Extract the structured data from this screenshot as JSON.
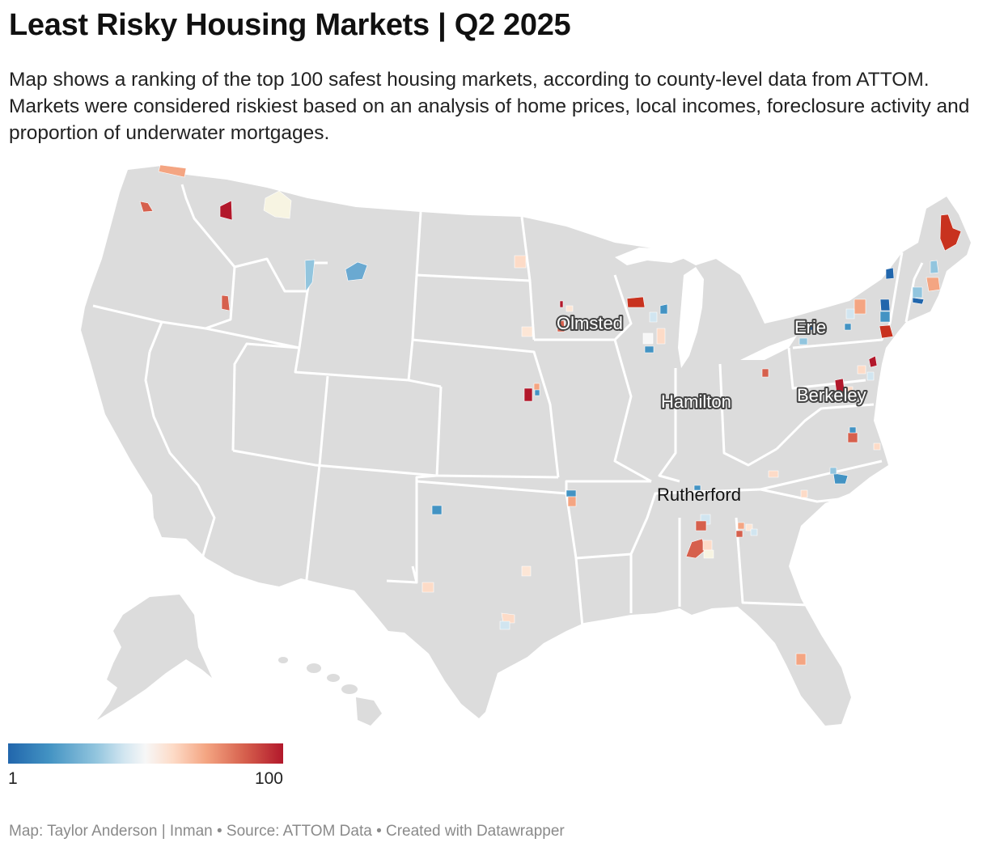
{
  "header": {
    "title": "Least Risky Housing Markets | Q2 2025",
    "subtitle": "Map shows a ranking of the top 100 safest housing markets, according to county-level data from ATTOM. Markets were considered riskiest based on an analysis of home prices, local incomes, foreclosure activity and proportion of underwater mortgages."
  },
  "map": {
    "land_color": "#dcdcdc",
    "border_color": "#ffffff",
    "labels": [
      {
        "text": "Olmsted"
      },
      {
        "text": "Erie"
      },
      {
        "text": "Hamilton"
      },
      {
        "text": "Berkeley"
      },
      {
        "text": "Rutherford"
      }
    ]
  },
  "legend": {
    "min_label": "1",
    "max_label": "100",
    "low_color": "#2166ac",
    "mid_color": "#f7f7f7",
    "high_color": "#b2182b"
  },
  "footer": {
    "credit": "Map: Taylor Anderson | Inman • Source: ATTOM Data • Created with Datawrapper"
  }
}
